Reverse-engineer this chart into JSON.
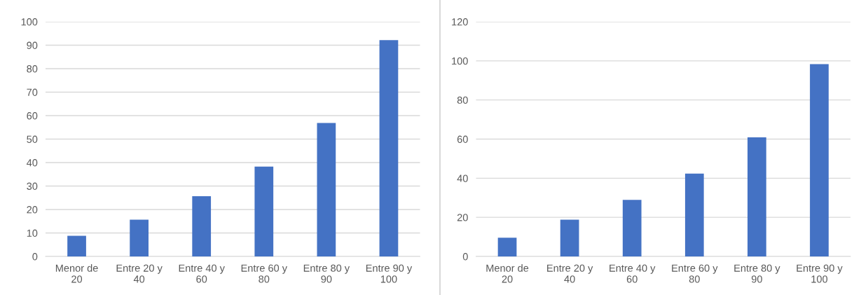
{
  "chart_data": [
    {
      "type": "bar",
      "categories": [
        "Menor de\n20",
        "Entre 20 y\n40",
        "Entre 40 y\n60",
        "Entre 60 y\n80",
        "Entre 80 y\n90",
        "Entre 90 y\n100"
      ],
      "values": [
        8.8,
        15.7,
        25.7,
        38.3,
        56.9,
        92.2
      ],
      "color": "#4472c4",
      "ylim": [
        0,
        100
      ],
      "yticks": [
        0,
        10,
        20,
        30,
        40,
        50,
        60,
        70,
        80,
        90,
        100
      ],
      "grid": "y"
    },
    {
      "type": "bar",
      "categories": [
        "Menor de\n20",
        "Entre 20 y\n40",
        "Entre 40 y\n60",
        "Entre 60 y\n80",
        "Entre 80 y\n90",
        "Entre 90 y\n100"
      ],
      "values": [
        9.6,
        18.8,
        28.9,
        42.4,
        60.9,
        98.3
      ],
      "color": "#4472c4",
      "ylim": [
        0,
        120
      ],
      "yticks": [
        0,
        20,
        40,
        60,
        80,
        100,
        120
      ],
      "grid": "y"
    }
  ]
}
